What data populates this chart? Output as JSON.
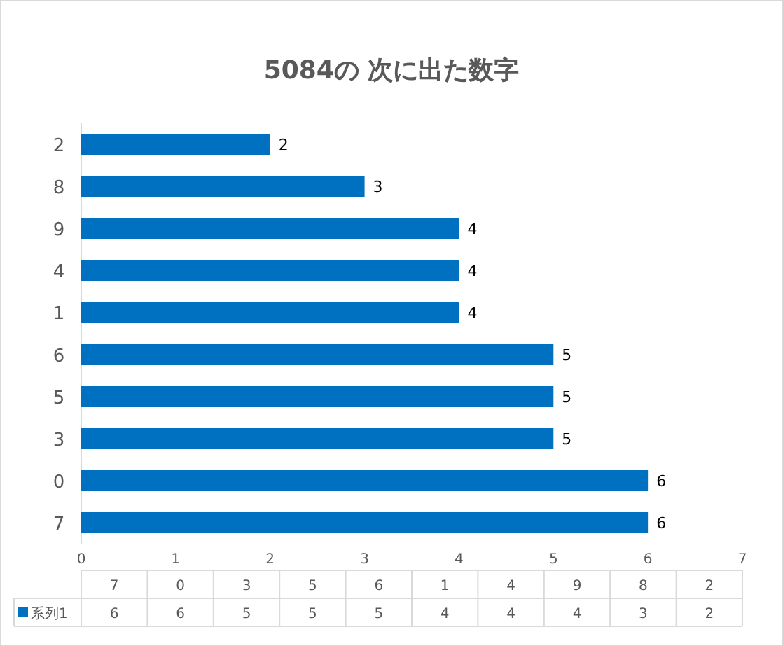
{
  "chart_data": {
    "type": "bar",
    "title": "5084の 次に出た数字",
    "orientation": "horizontal",
    "categories": [
      "2",
      "8",
      "9",
      "4",
      "1",
      "6",
      "5",
      "3",
      "0",
      "7"
    ],
    "series": [
      {
        "name": "系列1",
        "color": "#0070c0",
        "values": [
          2,
          3,
          4,
          4,
          4,
          5,
          5,
          5,
          6,
          6
        ]
      }
    ],
    "xlim": [
      0,
      7
    ],
    "xticks": [
      0,
      1,
      2,
      3,
      4,
      5,
      6,
      7
    ],
    "data_labels": true,
    "legend": "bottom",
    "grid": false
  }
}
